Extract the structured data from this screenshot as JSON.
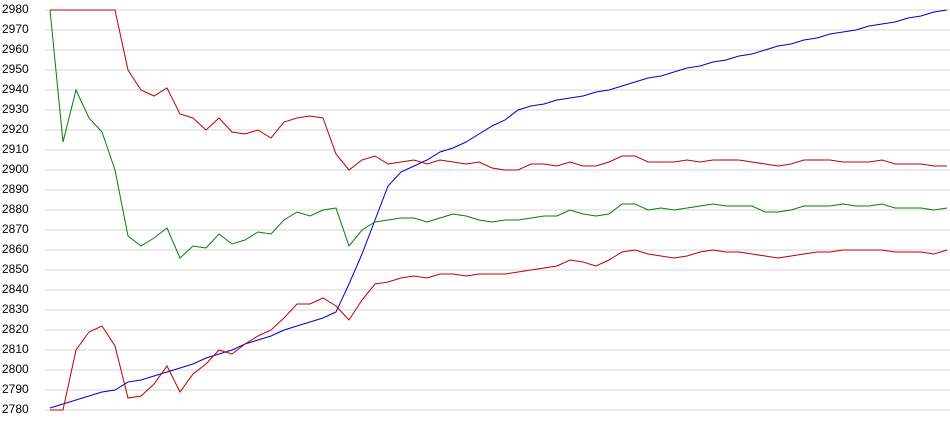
{
  "chart_data": {
    "type": "line",
    "categories": [
      null,
      null,
      null,
      null,
      null,
      null,
      null,
      null,
      null,
      null,
      null,
      null,
      null,
      null,
      null,
      null,
      null,
      null,
      null,
      null,
      null,
      null,
      null,
      null,
      null,
      null,
      null,
      null,
      null,
      null,
      null,
      null,
      null,
      null,
      null,
      null,
      null,
      null,
      null,
      null,
      null,
      null,
      null,
      null,
      null,
      null,
      null,
      null,
      null,
      null,
      null,
      null,
      null,
      null,
      null,
      null,
      null,
      null,
      null,
      null,
      null,
      null,
      null,
      null,
      null,
      null,
      null,
      null,
      null,
      null
    ],
    "series": [
      {
        "color": "#0000c8",
        "values": [
          2781,
          2783,
          2785,
          2787,
          2789,
          2790,
          2794,
          2795,
          2797,
          2799,
          2801,
          2803,
          2806,
          2808,
          2810,
          2813,
          2815,
          2817,
          2820,
          2822,
          2824,
          2826,
          2829,
          2843,
          2858,
          2875,
          2892,
          2899,
          2902,
          2905,
          2909,
          2911,
          2914,
          2918,
          2922,
          2925,
          2930,
          2932,
          2933,
          2935,
          2936,
          2937,
          2939,
          2940,
          2942,
          2944,
          2946,
          2947,
          2949,
          2951,
          2952,
          2954,
          2955,
          2957,
          2958,
          2960,
          2962,
          2963,
          2965,
          2966,
          2968,
          2969,
          2970,
          2972,
          2973,
          2974,
          2976,
          2977,
          2979,
          2980
        ]
      },
      {
        "color": "#c00000",
        "values": [
          2980,
          2980,
          2980,
          2980,
          2980,
          2980,
          2950,
          2940,
          2937,
          2941,
          2928,
          2926,
          2920,
          2926,
          2919,
          2918,
          2920,
          2916,
          2924,
          2926,
          2927,
          2926,
          2908,
          2900,
          2905,
          2907,
          2903,
          2904,
          2905,
          2903,
          2905,
          2904,
          2903,
          2904,
          2901,
          2900,
          2900,
          2903,
          2903,
          2902,
          2904,
          2902,
          2902,
          2904,
          2907,
          2907,
          2904,
          2904,
          2904,
          2905,
          2904,
          2905,
          2905,
          2905,
          2904,
          2903,
          2902,
          2903,
          2905,
          2905,
          2905,
          2904,
          2904,
          2904,
          2905,
          2903,
          2903,
          2903,
          2902,
          2902
        ]
      },
      {
        "color": "#008000",
        "values": [
          2980,
          2914,
          2940,
          2926,
          2919,
          2900,
          2867,
          2862,
          2866,
          2871,
          2856,
          2862,
          2861,
          2868,
          2863,
          2865,
          2869,
          2868,
          2875,
          2879,
          2877,
          2880,
          2881,
          2862,
          2870,
          2874,
          2875,
          2876,
          2876,
          2874,
          2876,
          2878,
          2877,
          2875,
          2874,
          2875,
          2875,
          2876,
          2877,
          2877,
          2880,
          2878,
          2877,
          2878,
          2883,
          2883,
          2880,
          2881,
          2880,
          2881,
          2882,
          2883,
          2882,
          2882,
          2882,
          2879,
          2879,
          2880,
          2882,
          2882,
          2882,
          2883,
          2882,
          2882,
          2883,
          2881,
          2881,
          2881,
          2880,
          2881
        ]
      },
      {
        "color": "#c00000",
        "values": [
          2780,
          2780,
          2810,
          2819,
          2822,
          2812,
          2786,
          2787,
          2793,
          2802,
          2789,
          2798,
          2803,
          2810,
          2808,
          2813,
          2817,
          2820,
          2826,
          2833,
          2833,
          2836,
          2832,
          2825,
          2835,
          2843,
          2844,
          2846,
          2847,
          2846,
          2848,
          2848,
          2847,
          2848,
          2848,
          2848,
          2849,
          2850,
          2851,
          2852,
          2855,
          2854,
          2852,
          2855,
          2859,
          2860,
          2858,
          2857,
          2856,
          2857,
          2859,
          2860,
          2859,
          2859,
          2858,
          2857,
          2856,
          2857,
          2858,
          2859,
          2859,
          2860,
          2860,
          2860,
          2860,
          2859,
          2859,
          2859,
          2858,
          2860
        ]
      }
    ],
    "ylim": [
      2780,
      2980
    ],
    "yticks": [
      2780,
      2790,
      2800,
      2810,
      2820,
      2830,
      2840,
      2850,
      2860,
      2870,
      2880,
      2890,
      2900,
      2910,
      2920,
      2930,
      2940,
      2950,
      2960,
      2970,
      2980
    ],
    "grid": true
  }
}
